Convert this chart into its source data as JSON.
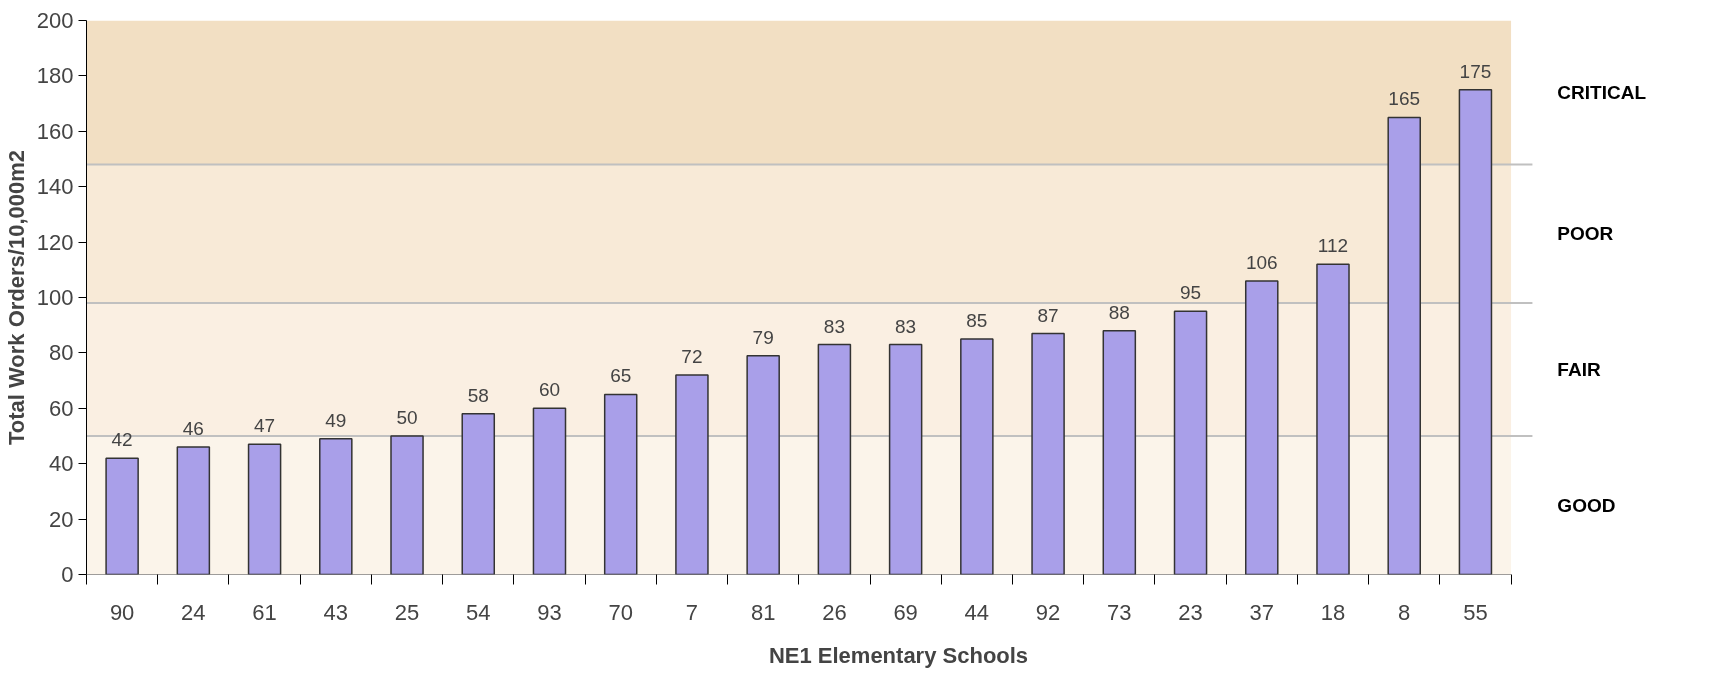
{
  "chart_data": {
    "type": "bar",
    "xlabel": "NE1 Elementary Schools",
    "ylabel": "Total Work Orders/10,000m2",
    "categories": [
      "90",
      "24",
      "61",
      "43",
      "25",
      "54",
      "93",
      "70",
      "7",
      "81",
      "26",
      "69",
      "44",
      "92",
      "73",
      "23",
      "37",
      "18",
      "8",
      "55"
    ],
    "values": [
      42,
      46,
      47,
      49,
      50,
      58,
      60,
      65,
      72,
      79,
      83,
      83,
      85,
      87,
      88,
      95,
      106,
      112,
      165,
      175
    ],
    "color": "#a99fe9",
    "data_labels": true,
    "ylim": [
      0,
      200
    ],
    "yticks": [
      0,
      20,
      40,
      60,
      80,
      100,
      120,
      140,
      160,
      180,
      200
    ],
    "bands": [
      {
        "axis": "y",
        "from": 0,
        "to": 50,
        "label": "GOOD",
        "color": "#fbf4ea"
      },
      {
        "axis": "y",
        "from": 50,
        "to": 98,
        "label": "FAIR",
        "color": "#faefe2"
      },
      {
        "axis": "y",
        "from": 98,
        "to": 148,
        "label": "POOR",
        "color": "#f8ead7"
      },
      {
        "axis": "y",
        "from": 148,
        "to": 200,
        "label": "CRITICAL",
        "color": "#f2dfc3"
      }
    ]
  }
}
